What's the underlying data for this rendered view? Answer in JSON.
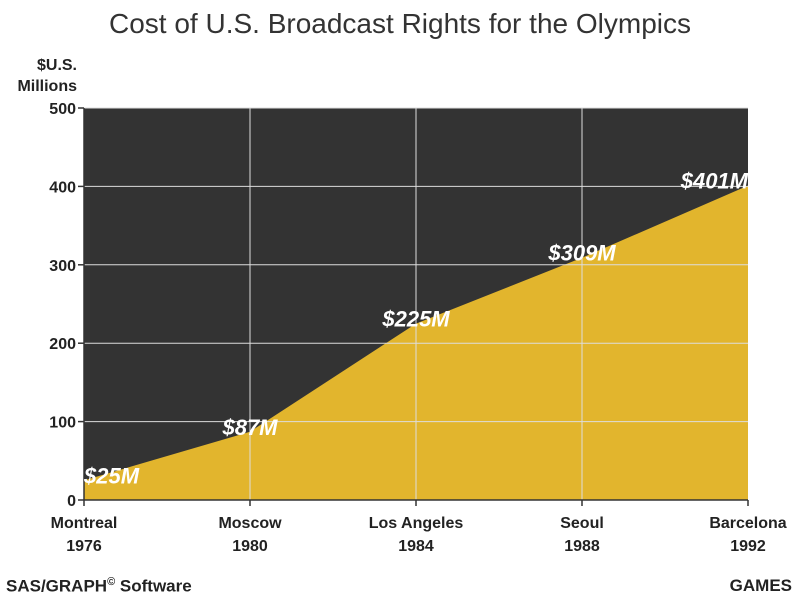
{
  "title": "Cost of U.S. Broadcast Rights for the Olympics",
  "footer": {
    "left_text": "SAS/GRAPH",
    "left_symbol": "©",
    "left_suffix": " Software",
    "right_text": "GAMES"
  },
  "colors": {
    "plot_background": "#333333",
    "area_fill": "#E2B52D",
    "grid": "#dddddd",
    "label_text": "#ffffff"
  },
  "chart_data": {
    "type": "area",
    "title": "Cost of U.S. Broadcast Rights for the Olympics",
    "ylabel_lines": [
      "$U.S.",
      "Millions"
    ],
    "xlabel": "GAMES",
    "categories": [
      {
        "city": "Montreal",
        "year": "1976"
      },
      {
        "city": "Moscow",
        "year": "1980"
      },
      {
        "city": "Los Angeles",
        "year": "1984"
      },
      {
        "city": "Seoul",
        "year": "1988"
      },
      {
        "city": "Barcelona",
        "year": "1992"
      }
    ],
    "values": [
      25,
      87,
      225,
      309,
      401
    ],
    "data_labels": [
      "$25M",
      "$87M",
      "$225M",
      "$309M",
      "$401M"
    ],
    "ylim": [
      0,
      500
    ],
    "yticks": [
      0,
      100,
      200,
      300,
      400,
      500
    ],
    "grid": true
  }
}
